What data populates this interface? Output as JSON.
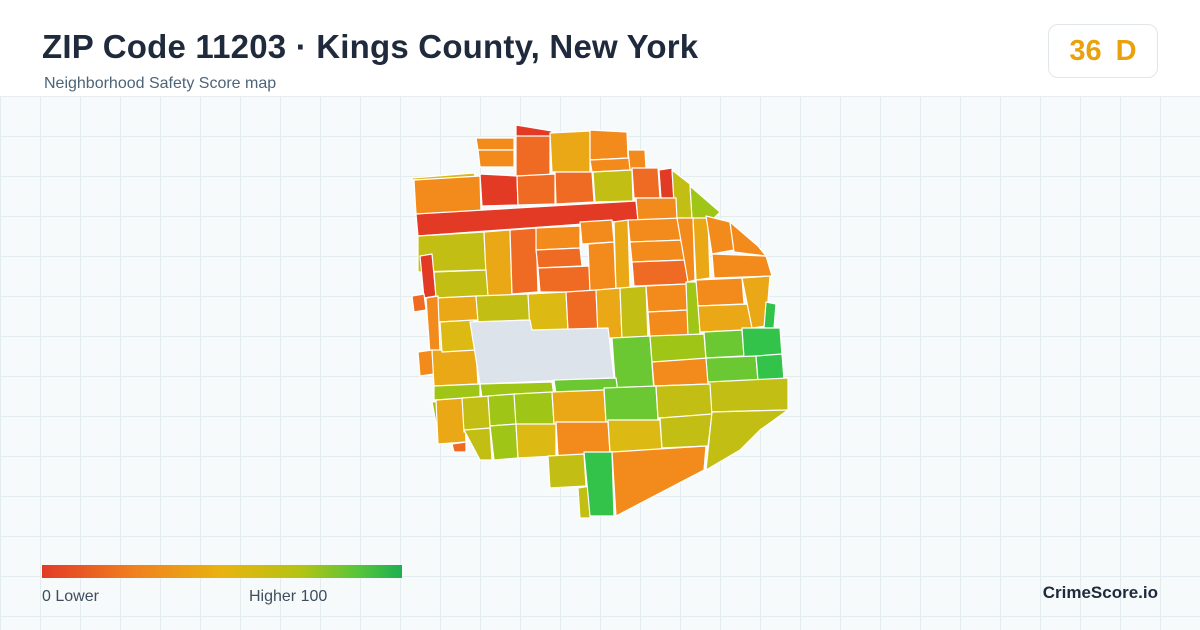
{
  "header": {
    "title": "ZIP Code 11203 · Kings County, New York",
    "subtitle": "Neighborhood Safety Score map"
  },
  "score": {
    "value": "36",
    "grade": "D",
    "color": "#e9a20c"
  },
  "legend": {
    "low_label": "0  Lower",
    "high_label": "Higher  100",
    "colors": [
      "#e33a26",
      "#f07f20",
      "#e9b30f",
      "#b3c414",
      "#55c53b",
      "#1db050"
    ]
  },
  "brand": "CrimeScore.io",
  "map": {
    "block_colors": {
      "red": "#e33a26",
      "orange_red": "#ef6a22",
      "orange": "#f28b1c",
      "amber": "#eba816",
      "yellow": "#dcb913",
      "olive": "#c3be13",
      "yellow_green": "#9fc517",
      "green": "#6cc832",
      "bright_green": "#33c24a",
      "park": "#dce3ea"
    }
  }
}
